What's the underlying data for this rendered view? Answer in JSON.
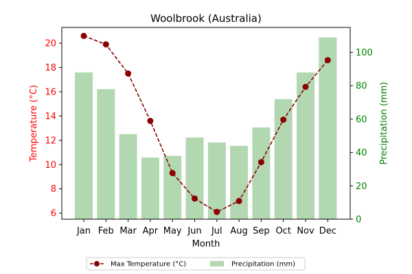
{
  "chart_data": {
    "type": "bar+line",
    "title": "Woolbrook (Australia)",
    "xlabel": "Month",
    "ylabel_left": "Temperature (°C)",
    "ylabel_right": "Precipitation (mm)",
    "categories": [
      "Jan",
      "Feb",
      "Mar",
      "Apr",
      "May",
      "Jun",
      "Jul",
      "Aug",
      "Sep",
      "Oct",
      "Nov",
      "Dec"
    ],
    "temperature": {
      "name": "Max Temperature (°C)",
      "values": [
        20.6,
        19.9,
        17.5,
        13.6,
        9.3,
        7.2,
        6.1,
        7.0,
        10.2,
        13.7,
        16.4,
        18.6
      ],
      "ylim": [
        5.5,
        21.3
      ],
      "yticks": [
        6,
        8,
        10,
        12,
        14,
        16,
        18,
        20
      ],
      "color": "#8b0000"
    },
    "precipitation": {
      "name": "Precipitation (mm)",
      "values": [
        88,
        78,
        51,
        37,
        38,
        49,
        46,
        44,
        55,
        72,
        88,
        109
      ],
      "ylim": [
        0,
        115
      ],
      "yticks": [
        0,
        20,
        40,
        60,
        80,
        100
      ],
      "color": "#b2d8b2"
    },
    "left_axis_color": "#ff0000",
    "right_axis_color": "#008000",
    "legend_position": "bottom-center"
  }
}
